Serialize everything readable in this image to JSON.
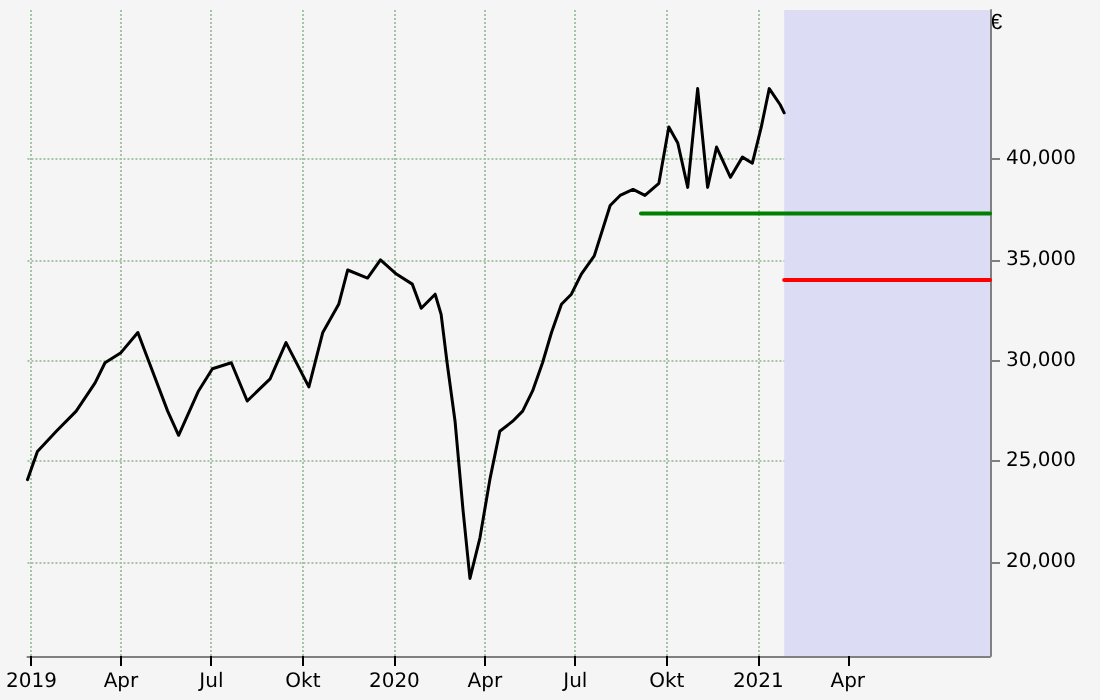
{
  "chart_data": {
    "type": "line",
    "ylabel": "€",
    "grid": true,
    "marker": "none",
    "line_style": "solid",
    "xlim": [
      "2018-12-28",
      "2021-08-22"
    ],
    "ylim": [
      15350,
      47400
    ],
    "xticks": [
      {
        "value": "2019-01-01",
        "label": "2019"
      },
      {
        "value": "2019-04-01",
        "label": "Apr"
      },
      {
        "value": "2019-07-01",
        "label": "Jul"
      },
      {
        "value": "2019-10-01",
        "label": "Okt"
      },
      {
        "value": "2020-01-01",
        "label": "2020"
      },
      {
        "value": "2020-04-01",
        "label": "Apr"
      },
      {
        "value": "2020-07-01",
        "label": "Jul"
      },
      {
        "value": "2020-10-01",
        "label": "Okt"
      },
      {
        "value": "2021-01-01",
        "label": "2021"
      },
      {
        "value": "2021-04-01",
        "label": "Apr"
      }
    ],
    "yticks": [
      {
        "value": 20000,
        "label": "20,000"
      },
      {
        "value": 25000,
        "label": "25,000"
      },
      {
        "value": 30000,
        "label": "30,000"
      },
      {
        "value": 35000,
        "label": "35,000"
      },
      {
        "value": 40000,
        "label": "40,000"
      }
    ],
    "bands": [
      {
        "axis": "x",
        "from": "2021-01-27",
        "to": "2021-08-22",
        "color": "#dcdcf4"
      }
    ],
    "series": [
      {
        "color": "#000000",
        "x": [
          "2018-12-28",
          "2019-01-07",
          "2019-01-26",
          "2019-02-15",
          "2019-03-06",
          "2019-03-16",
          "2019-04-01",
          "2019-04-18",
          "2019-04-28",
          "2019-05-18",
          "2019-05-29",
          "2019-06-18",
          "2019-07-02",
          "2019-07-21",
          "2019-08-06",
          "2019-08-29",
          "2019-09-14",
          "2019-10-07",
          "2019-10-21",
          "2019-11-06",
          "2019-11-15",
          "2019-12-05",
          "2019-12-18",
          "2020-01-03",
          "2020-01-19",
          "2020-01-28",
          "2020-02-11",
          "2020-02-17",
          "2020-02-23",
          "2020-03-02",
          "2020-03-10",
          "2020-03-17",
          "2020-03-27",
          "2020-04-06",
          "2020-04-16",
          "2020-04-29",
          "2020-05-09",
          "2020-05-19",
          "2020-05-29",
          "2020-06-07",
          "2020-06-17",
          "2020-06-27",
          "2020-07-07",
          "2020-07-20",
          "2020-08-05",
          "2020-08-15",
          "2020-08-28",
          "2020-09-09",
          "2020-09-23",
          "2020-10-03",
          "2020-10-12",
          "2020-10-22",
          "2020-11-01",
          "2020-11-11",
          "2020-11-20",
          "2020-12-04",
          "2020-12-16",
          "2020-12-26",
          "2021-01-04",
          "2021-01-12",
          "2021-01-23",
          "2021-01-27"
        ],
        "values": [
          24100,
          25500,
          26500,
          27500,
          28900,
          29900,
          30400,
          31400,
          30100,
          27500,
          26300,
          28500,
          29600,
          29900,
          28000,
          29100,
          30900,
          28700,
          31400,
          32800,
          34500,
          34100,
          35000,
          34300,
          33800,
          32600,
          33300,
          32300,
          29900,
          27000,
          22600,
          19200,
          21200,
          24100,
          26500,
          27000,
          27500,
          28500,
          29900,
          31400,
          32800,
          33300,
          34300,
          35200,
          37700,
          38200,
          38500,
          38200,
          38800,
          41600,
          40800,
          38600,
          43500,
          38600,
          40600,
          39100,
          40100,
          39800,
          41600,
          43500,
          42700,
          42300
        ]
      },
      {
        "color": "#008000",
        "x": [
          "2020-09-05",
          "2021-08-22"
        ],
        "values": [
          37300,
          37300
        ]
      },
      {
        "color": "#ff0000",
        "x": [
          "2021-01-27",
          "2021-08-22"
        ],
        "values": [
          34000,
          34000
        ]
      }
    ]
  }
}
